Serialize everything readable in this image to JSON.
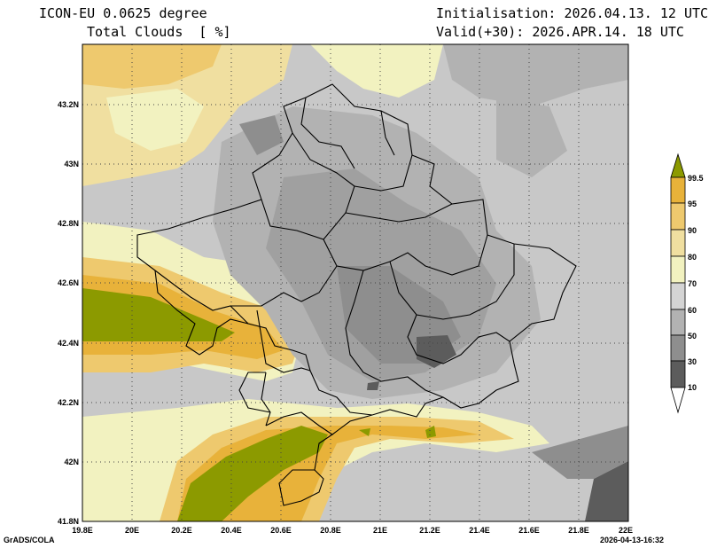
{
  "header": {
    "model": "ICON-EU 0.0625 degree",
    "field": "Total Clouds  [ %]",
    "init": "Initialisation: 2026.04.13. 12 UTC",
    "valid": "Valid(+30): 2026.APR.14. 18 UTC"
  },
  "axes": {
    "lon_labels": [
      "19.8E",
      "20E",
      "20.2E",
      "20.4E",
      "20.6E",
      "20.8E",
      "21E",
      "21.2E",
      "21.4E",
      "21.6E",
      "21.8E",
      "22E"
    ],
    "lat_labels": [
      "43.2N",
      "43N",
      "42.8N",
      "42.6N",
      "42.4N",
      "42.2N",
      "42N",
      "41.8N"
    ]
  },
  "colorbar": {
    "labels": [
      "99.5",
      "95",
      "90",
      "80",
      "70",
      "60",
      "50",
      "30",
      "10"
    ],
    "colors": [
      "#8c9a00",
      "#e8b23a",
      "#eec96e",
      "#f0dfa0",
      "#f2f2c0",
      "#d4d4d4",
      "#b2b2b2",
      "#8e8e8e",
      "#5c5c5c"
    ]
  },
  "footer": {
    "credit": "GrADS/COLA",
    "timestamp": "2026-04-13-16:32"
  }
}
